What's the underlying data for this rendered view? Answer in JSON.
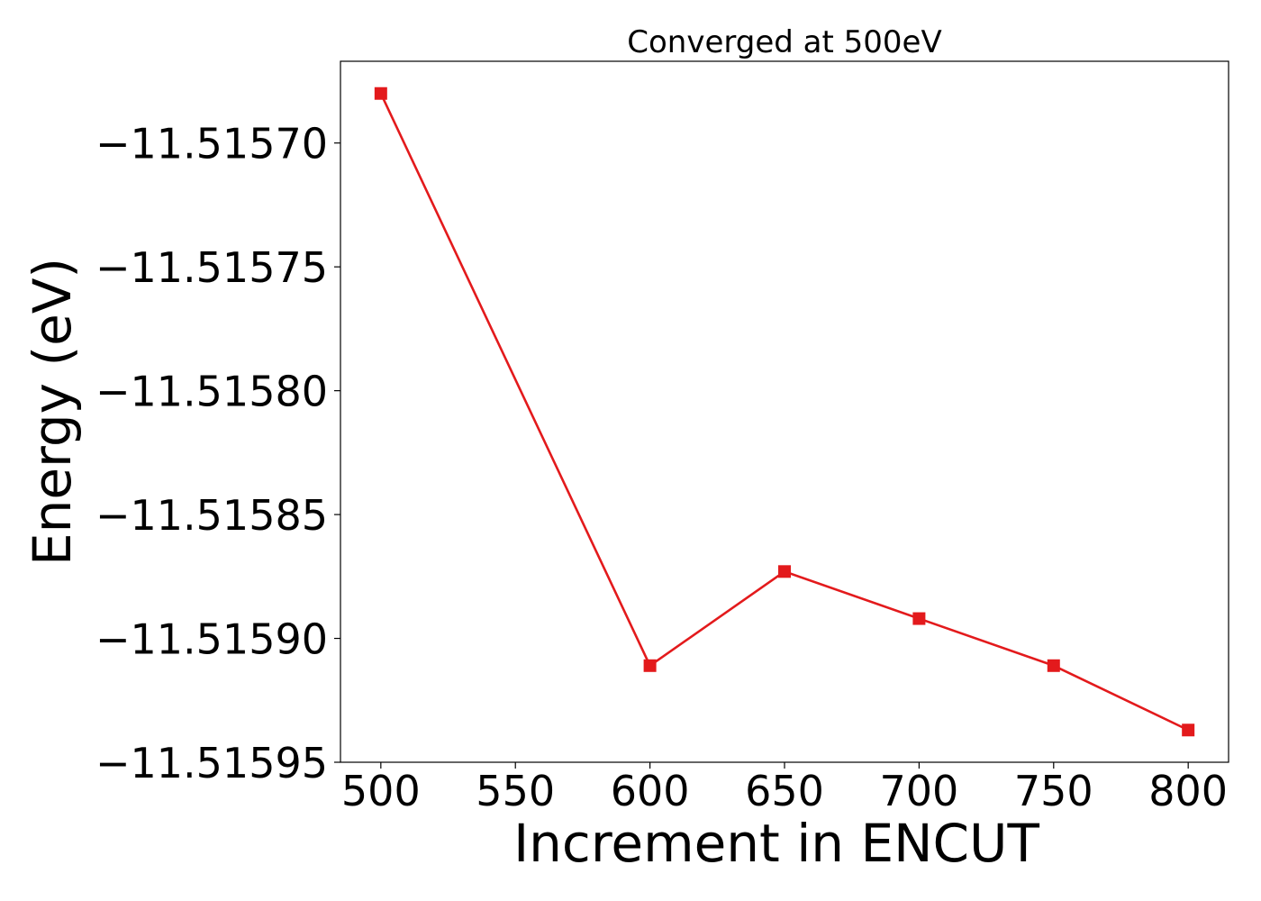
{
  "chart_data": {
    "type": "line",
    "title": "Converged at 500eV",
    "xlabel": "Increment in ENCUT",
    "ylabel": "Energy (eV)",
    "x": [
      500,
      600,
      650,
      700,
      750,
      800
    ],
    "series": [
      {
        "values": [
          -11.51568,
          -11.515911,
          -11.515873,
          -11.515892,
          -11.515911,
          -11.515937
        ],
        "color": "#e31a1c",
        "marker": "square"
      }
    ],
    "xlim": [
      485,
      815
    ],
    "ylim": [
      -11.51595,
      -11.515667
    ],
    "xticks": [
      500,
      550,
      600,
      650,
      700,
      750,
      800
    ],
    "xtick_labels": [
      "500",
      "550",
      "600",
      "650",
      "700",
      "750",
      "800"
    ],
    "yticks": [
      -11.5157,
      -11.51575,
      -11.5158,
      -11.51585,
      -11.5159,
      -11.51595
    ],
    "ytick_labels": [
      "−11.51570",
      "−11.51575",
      "−11.51580",
      "−11.51585",
      "−11.51590",
      "−11.51595"
    ],
    "grid": false,
    "legend": false
  }
}
